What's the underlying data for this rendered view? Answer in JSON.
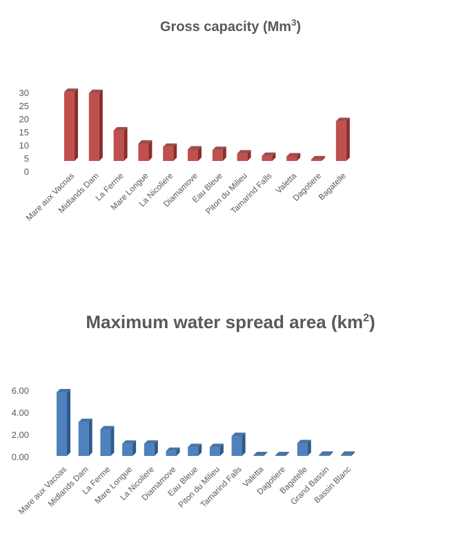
{
  "chart_data": [
    {
      "type": "bar",
      "title": "Gross capacity (Mm",
      "title_sup": "3",
      "title_end": ")",
      "categories": [
        "Mare aux Vacoas",
        "Midlands Dam",
        "La Ferme",
        "Mare Longue",
        "La Nicoliere",
        "Diamamove",
        "Eau Bleue",
        "Piton du Milieu",
        "Tamarind Falls",
        "Valetta",
        "Dagotiere",
        "Bagatelle"
      ],
      "values": [
        26,
        25.6,
        11.5,
        6.5,
        5.3,
        4.3,
        4.1,
        2.8,
        1.9,
        1.7,
        0.6,
        15
      ],
      "yticks": [
        "0",
        "5",
        "10",
        "15",
        "20",
        "25",
        "30"
      ],
      "ylim": [
        0,
        30
      ],
      "color": "#c0504d",
      "side": "#8c2d2a"
    },
    {
      "type": "bar",
      "title": "Maximum water spread area (km",
      "title_sup": "2",
      "title_end": ")",
      "categories": [
        "Mare aux Vacoas",
        "Midlands Dam",
        "La Ferme",
        "Mare Longue",
        "La Nicoliere",
        "Diamamove",
        "Eau Bleue",
        "Piton du Milieu",
        "Tamarind Falls",
        "Valetta",
        "Dagotiere",
        "Bagatelle",
        "Grand Bassin",
        "Bassin Blanc"
      ],
      "values": [
        5.75,
        3.06,
        2.4,
        1.1,
        1.1,
        0.45,
        0.8,
        0.8,
        1.8,
        0.05,
        0.05,
        1.15,
        0.1,
        0.1
      ],
      "yticks": [
        "0.00",
        "2.00",
        "4.00",
        "6.00"
      ],
      "ylim": [
        0,
        6
      ],
      "color": "#4f81bd",
      "side": "#2c5a8f"
    }
  ]
}
